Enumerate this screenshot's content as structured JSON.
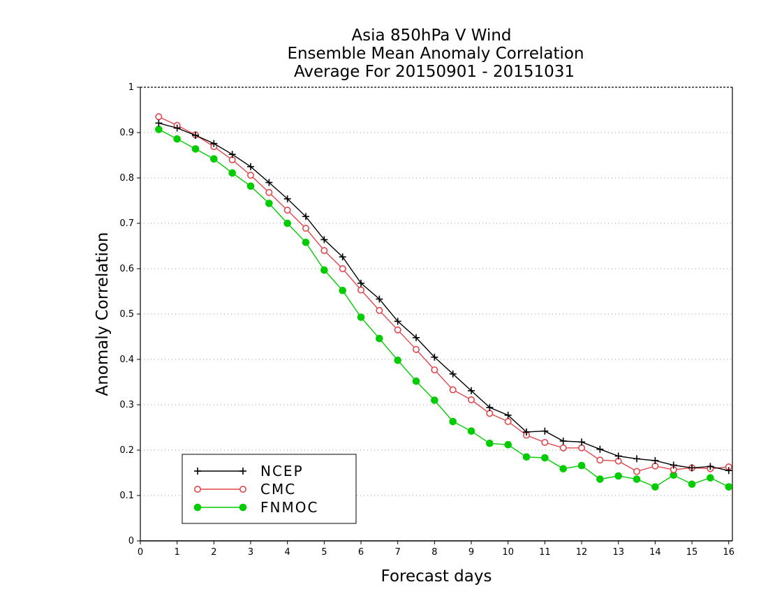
{
  "chart_data": {
    "type": "line",
    "title_lines": [
      "Asia 850hPa V Wind",
      "Ensemble Mean Anomaly Correlation",
      "Average For 20150901 - 20151031"
    ],
    "xlabel": "Forecast days",
    "ylabel": "Anomaly Correlation",
    "xlim": [
      0,
      16.1
    ],
    "ylim": [
      0,
      1
    ],
    "x_ticks": [
      0,
      1,
      2,
      3,
      4,
      5,
      6,
      7,
      8,
      9,
      10,
      11,
      12,
      13,
      14,
      15,
      16
    ],
    "x_tick_labels": [
      "0",
      "1",
      "2",
      "3",
      "4",
      "5",
      "6",
      "7",
      "8",
      "9",
      "10",
      "11",
      "12",
      "13",
      "14",
      "15",
      "16"
    ],
    "y_ticks": [
      0,
      0.1,
      0.2,
      0.3,
      0.4,
      0.5,
      0.6,
      0.7,
      0.8,
      0.9,
      1
    ],
    "y_tick_labels": [
      "0",
      "0.1",
      "0.2",
      "0.3",
      "0.4",
      "0.5",
      "0.6",
      "0.7",
      "0.8",
      "0.9",
      "1"
    ],
    "grid": "horizontal-dotted",
    "legend_position": "bottom-left",
    "x": [
      0.5,
      1,
      1.5,
      2,
      2.5,
      3,
      3.5,
      4,
      4.5,
      5,
      5.5,
      6,
      6.5,
      7,
      7.5,
      8,
      8.5,
      9,
      9.5,
      10,
      10.5,
      11,
      11.5,
      12,
      12.5,
      13,
      13.5,
      14,
      14.5,
      15,
      15.5,
      16
    ],
    "series": [
      {
        "name": "NCEP",
        "color": "#000000",
        "marker": "plus",
        "values": [
          0.921,
          0.91,
          0.894,
          0.876,
          0.852,
          0.825,
          0.79,
          0.754,
          0.715,
          0.664,
          0.626,
          0.568,
          0.533,
          0.484,
          0.448,
          0.405,
          0.368,
          0.331,
          0.294,
          0.277,
          0.24,
          0.242,
          0.22,
          0.218,
          0.202,
          0.187,
          0.181,
          0.177,
          0.167,
          0.161,
          0.164,
          0.155
        ]
      },
      {
        "name": "CMC",
        "color": "#e0474c",
        "marker": "open-circle",
        "values": [
          0.935,
          0.916,
          0.895,
          0.869,
          0.84,
          0.806,
          0.768,
          0.729,
          0.689,
          0.64,
          0.6,
          0.553,
          0.508,
          0.465,
          0.422,
          0.377,
          0.333,
          0.311,
          0.281,
          0.263,
          0.233,
          0.217,
          0.205,
          0.205,
          0.178,
          0.176,
          0.153,
          0.165,
          0.157,
          0.161,
          0.159,
          0.163
        ]
      },
      {
        "name": "FNMOC",
        "color": "#00cc00",
        "marker": "filled-circle",
        "values": [
          0.907,
          0.886,
          0.864,
          0.842,
          0.811,
          0.782,
          0.744,
          0.7,
          0.658,
          0.597,
          0.552,
          0.493,
          0.446,
          0.398,
          0.352,
          0.31,
          0.263,
          0.242,
          0.215,
          0.212,
          0.185,
          0.183,
          0.159,
          0.166,
          0.136,
          0.143,
          0.136,
          0.119,
          0.145,
          0.125,
          0.139,
          0.119
        ]
      }
    ]
  }
}
